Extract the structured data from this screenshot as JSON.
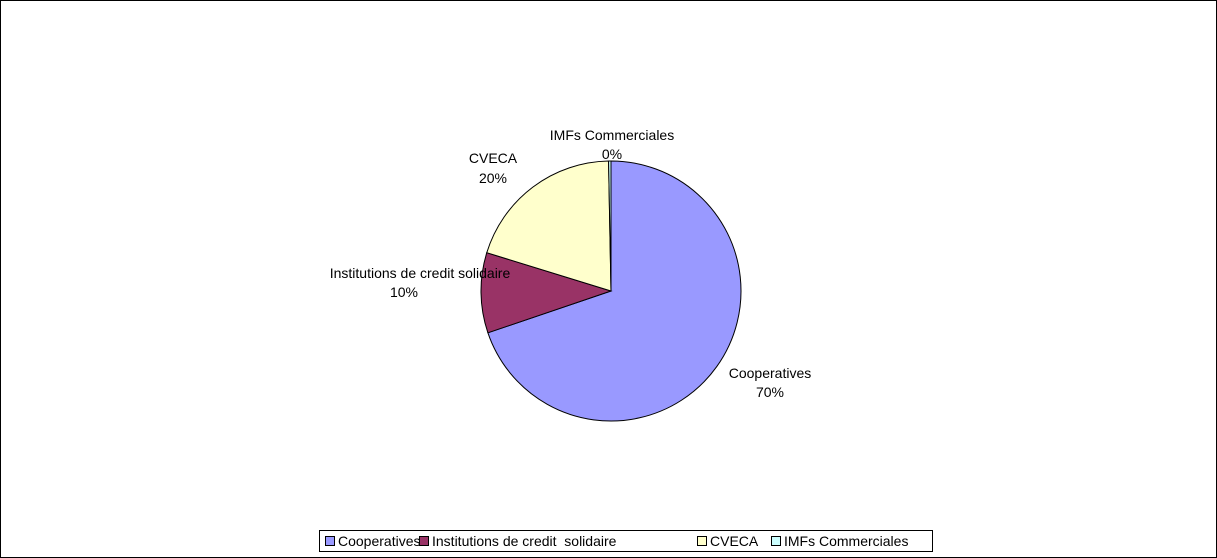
{
  "chart_data": {
    "type": "pie",
    "title": "",
    "slices": [
      {
        "label": "Cooperatives",
        "value": 70,
        "data_label": "Cooperatives",
        "pct_label": "70%",
        "color": "#9999FF"
      },
      {
        "label": "Institutions de credit solidaire",
        "value": 10,
        "data_label": "Institutions de credit solidaire",
        "pct_label": "10%",
        "color": "#993366"
      },
      {
        "label": "CVECA",
        "value": 20,
        "data_label": "CVECA",
        "pct_label": "20%",
        "color": "#FFFFCC"
      },
      {
        "label": "IMFs Commerciales",
        "value": 0.3,
        "data_label": "IMFs Commerciales",
        "pct_label": "0%",
        "color": "#CCFFFF"
      }
    ],
    "legend": {
      "placement": "bottom",
      "entries": [
        "Cooperatives",
        "Institutions de credit  solidaire",
        "CVECA",
        "IMFs Commerciales"
      ]
    }
  }
}
